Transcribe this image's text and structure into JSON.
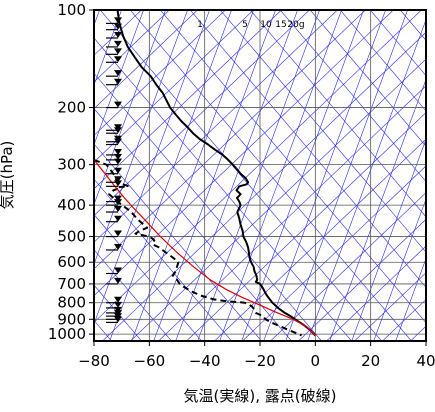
{
  "chart_data": {
    "type": "line",
    "title": "",
    "xlabel": "気温(実線), 露点(破線)",
    "ylabel": "気圧(hPa)",
    "x_ticks": [
      -80,
      -60,
      -40,
      -20,
      0,
      20,
      40
    ],
    "x_tick_labels": [
      "−80",
      "−60",
      "−40",
      "−20",
      "0",
      "20",
      "40"
    ],
    "y_ticks": [
      100,
      200,
      300,
      400,
      500,
      600,
      700,
      800,
      900,
      1000
    ],
    "y_tick_labels": [
      "100",
      "200",
      "300",
      "400",
      "500",
      "600",
      "700",
      "800",
      "900",
      "1000"
    ],
    "xlim": [
      -80,
      40
    ],
    "ylim": [
      1050,
      100
    ],
    "y_scale": "log",
    "grid": true,
    "mixing_ratio_labels": [
      "1",
      "5",
      "10",
      "15",
      "20g"
    ],
    "series": [
      {
        "kind": "temperature",
        "line_style": "solid",
        "color": "#000000",
        "points": [
          [
            -71.5,
            100
          ],
          [
            -71.2,
            104
          ],
          [
            -70.8,
            110
          ],
          [
            -69.5,
            120
          ],
          [
            -67.8,
            130
          ],
          [
            -65.2,
            140
          ],
          [
            -62.8,
            150
          ],
          [
            -59.5,
            160
          ],
          [
            -57.5,
            170
          ],
          [
            -55.2,
            180
          ],
          [
            -53.8,
            190
          ],
          [
            -52.5,
            200
          ],
          [
            -50.5,
            210
          ],
          [
            -48.5,
            220
          ],
          [
            -46.2,
            230
          ],
          [
            -44.2,
            240
          ],
          [
            -41.8,
            250
          ],
          [
            -38.8,
            260
          ],
          [
            -36.2,
            270
          ],
          [
            -33.5,
            280
          ],
          [
            -31.5,
            290
          ],
          [
            -29.8,
            300
          ],
          [
            -28.3,
            310
          ],
          [
            -27.0,
            320
          ],
          [
            -25.2,
            330
          ],
          [
            -24.3,
            340
          ],
          [
            -24.8,
            345
          ],
          [
            -27.5,
            350
          ],
          [
            -28.5,
            360
          ],
          [
            -27.0,
            370
          ],
          [
            -28.3,
            380
          ],
          [
            -27.5,
            390
          ],
          [
            -27.0,
            400
          ],
          [
            -28.2,
            420
          ],
          [
            -27.5,
            440
          ],
          [
            -27.0,
            460
          ],
          [
            -26.3,
            480
          ],
          [
            -26.0,
            500
          ],
          [
            -25.0,
            520
          ],
          [
            -24.3,
            540
          ],
          [
            -24.0,
            560
          ],
          [
            -23.8,
            580
          ],
          [
            -23.2,
            600
          ],
          [
            -22.3,
            620
          ],
          [
            -22.0,
            640
          ],
          [
            -21.3,
            660
          ],
          [
            -21.0,
            680
          ],
          [
            -21.5,
            690
          ],
          [
            -20.0,
            700
          ],
          [
            -19.0,
            720
          ],
          [
            -18.3,
            740
          ],
          [
            -17.5,
            760
          ],
          [
            -16.5,
            780
          ],
          [
            -15.5,
            800
          ],
          [
            -13.5,
            830
          ],
          [
            -11.0,
            860
          ],
          [
            -9.0,
            880
          ],
          [
            -6.5,
            910
          ],
          [
            -4.0,
            940
          ],
          [
            -2.0,
            970
          ],
          [
            -0.5,
            1000
          ],
          [
            0.0,
            1010
          ]
        ]
      },
      {
        "kind": "dewpoint",
        "line_style": "dashed",
        "color": "#000000",
        "points": [
          [
            -80.0,
            290
          ],
          [
            -75.5,
            300
          ],
          [
            -73.0,
            320
          ],
          [
            -71.5,
            340
          ],
          [
            -69.5,
            345
          ],
          [
            -67.5,
            350
          ],
          [
            -71.5,
            352
          ],
          [
            -71.0,
            355
          ],
          [
            -73.0,
            360
          ],
          [
            -74.5,
            370
          ],
          [
            -71.5,
            390
          ],
          [
            -69.8,
            400
          ],
          [
            -66.5,
            420
          ],
          [
            -64.5,
            440
          ],
          [
            -62.0,
            460
          ],
          [
            -60.8,
            470
          ],
          [
            -63.5,
            480
          ],
          [
            -65.0,
            490
          ],
          [
            -60.0,
            500
          ],
          [
            -58.5,
            510
          ],
          [
            -58.0,
            520
          ],
          [
            -58.5,
            530
          ],
          [
            -56.5,
            540
          ],
          [
            -54.0,
            560
          ],
          [
            -51.5,
            580
          ],
          [
            -49.5,
            600
          ],
          [
            -50.0,
            620
          ],
          [
            -50.5,
            640
          ],
          [
            -51.5,
            660
          ],
          [
            -50.0,
            680
          ],
          [
            -49.0,
            700
          ],
          [
            -47.0,
            720
          ],
          [
            -44.5,
            740
          ],
          [
            -41.5,
            760
          ],
          [
            -37.0,
            780
          ],
          [
            -33.0,
            790
          ],
          [
            -25.5,
            800
          ],
          [
            -23.0,
            820
          ],
          [
            -22.0,
            840
          ],
          [
            -21.5,
            860
          ],
          [
            -19.0,
            880
          ],
          [
            -18.0,
            900
          ],
          [
            -16.0,
            920
          ],
          [
            -13.5,
            940
          ],
          [
            -11.0,
            960
          ],
          [
            -8.5,
            980
          ],
          [
            -6.0,
            1000
          ],
          [
            -5.0,
            1010
          ]
        ]
      },
      {
        "kind": "parcel",
        "line_style": "solid",
        "color": "#e00000",
        "points": [
          [
            -80.0,
            290
          ],
          [
            -76.0,
            320
          ],
          [
            -72.5,
            350
          ],
          [
            -69.0,
            380
          ],
          [
            -65.5,
            410
          ],
          [
            -61.0,
            450
          ],
          [
            -56.0,
            500
          ],
          [
            -50.0,
            560
          ],
          [
            -44.0,
            620
          ],
          [
            -38.0,
            680
          ],
          [
            -32.0,
            730
          ],
          [
            -26.5,
            770
          ],
          [
            -22.0,
            800
          ],
          [
            -15.0,
            850
          ],
          [
            -8.0,
            900
          ],
          [
            -3.0,
            950
          ],
          [
            -0.5,
            1000
          ],
          [
            0.0,
            1010
          ]
        ]
      }
    ],
    "wind_barb_levels_hPa": [
      110,
      115,
      122,
      130,
      137,
      145,
      160,
      170,
      200,
      235,
      240,
      255,
      260,
      280,
      290,
      300,
      320,
      340,
      350,
      390,
      400,
      420,
      450,
      500,
      550,
      650,
      700,
      800,
      830,
      860,
      880,
      900,
      920
    ]
  }
}
